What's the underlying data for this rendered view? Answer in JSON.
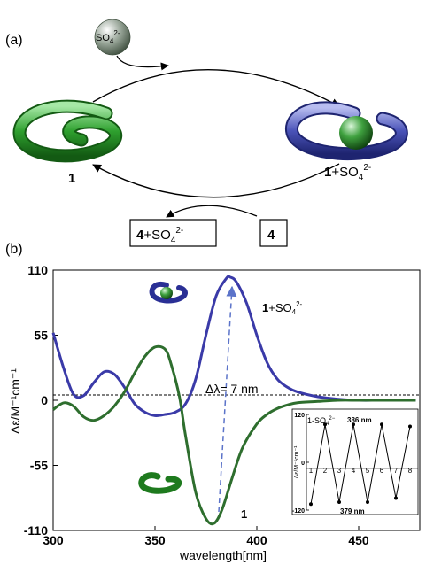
{
  "panel_a": {
    "label": "(a)",
    "sulfate_label": "SO",
    "sulfate_sub": "4",
    "sulfate_sup": "2-",
    "host_label": "1",
    "complex_label_main": "1",
    "complex_label_rest": "+SO",
    "complex_sub": "4",
    "complex_sup": "2-",
    "product_box_main": "4",
    "product_box_rest": "+SO",
    "product_box_sub": "4",
    "product_box_sup": "2-",
    "reagent_box": "4"
  },
  "panel_b": {
    "label": "(b)"
  },
  "colors": {
    "blue": "#3a3aa8",
    "green": "#2e6e2e",
    "dashed": "#5b73c9",
    "zero": "#000000"
  },
  "chart_data": [
    {
      "type": "line",
      "xlabel": "wavelength[nm]",
      "ylabel": "Δε/M⁻¹cm⁻¹",
      "xlim": [
        300,
        480
      ],
      "ylim": [
        -110,
        110
      ],
      "x_ticks": [
        "300",
        "350",
        "400",
        "450"
      ],
      "y_ticks": [
        "110",
        "55",
        "0",
        "-55",
        "-110"
      ],
      "annotation": "Δλ= 7 nm",
      "series": [
        {
          "name": "1+SO₄²⁻",
          "color": "#3a3aa8",
          "x": [
            300,
            305,
            310,
            315,
            320,
            325,
            330,
            335,
            340,
            345,
            350,
            355,
            360,
            365,
            370,
            375,
            380,
            385,
            387,
            390,
            395,
            400,
            405,
            410,
            415,
            420,
            430,
            440,
            450,
            460,
            470,
            478
          ],
          "y": [
            57,
            28,
            5,
            4,
            15,
            24,
            22,
            11,
            -3,
            -10,
            -13,
            -12,
            -10,
            -3,
            18,
            55,
            88,
            103,
            104,
            100,
            82,
            55,
            32,
            18,
            11,
            7,
            3,
            1,
            0,
            0,
            0,
            0
          ]
        },
        {
          "name": "1",
          "color": "#2e6e2e",
          "x": [
            300,
            303,
            306,
            310,
            315,
            320,
            325,
            330,
            335,
            340,
            345,
            350,
            355,
            358,
            362,
            365,
            370,
            375,
            379,
            383,
            388,
            393,
            400,
            405,
            410,
            415,
            420,
            430,
            440,
            450,
            460,
            470,
            478
          ],
          "y": [
            -8,
            -4,
            -2,
            -5,
            -14,
            -17,
            -13,
            -5,
            7,
            23,
            37,
            45,
            43,
            30,
            3,
            -30,
            -78,
            -100,
            -104,
            -92,
            -65,
            -40,
            -20,
            -12,
            -7,
            -4,
            -2,
            -1,
            0,
            0,
            0,
            0,
            0
          ]
        }
      ]
    },
    {
      "type": "line",
      "title": "1-SO₄²⁻",
      "ylabel": "Δε/M⁻¹cm⁻¹",
      "x_tick_labels": [
        "1",
        "2",
        "3",
        "4",
        "5",
        "6",
        "7",
        "8"
      ],
      "y_ticks": [
        "120",
        "0",
        "-120"
      ],
      "ylim": [
        -120,
        120
      ],
      "annotations": [
        "386 nm",
        "379 nm"
      ],
      "series": [
        {
          "x": [
            1,
            2,
            3,
            4,
            5,
            6,
            7,
            8
          ],
          "y": [
            -105,
            95,
            -100,
            95,
            -100,
            95,
            -90,
            90
          ]
        }
      ]
    }
  ]
}
